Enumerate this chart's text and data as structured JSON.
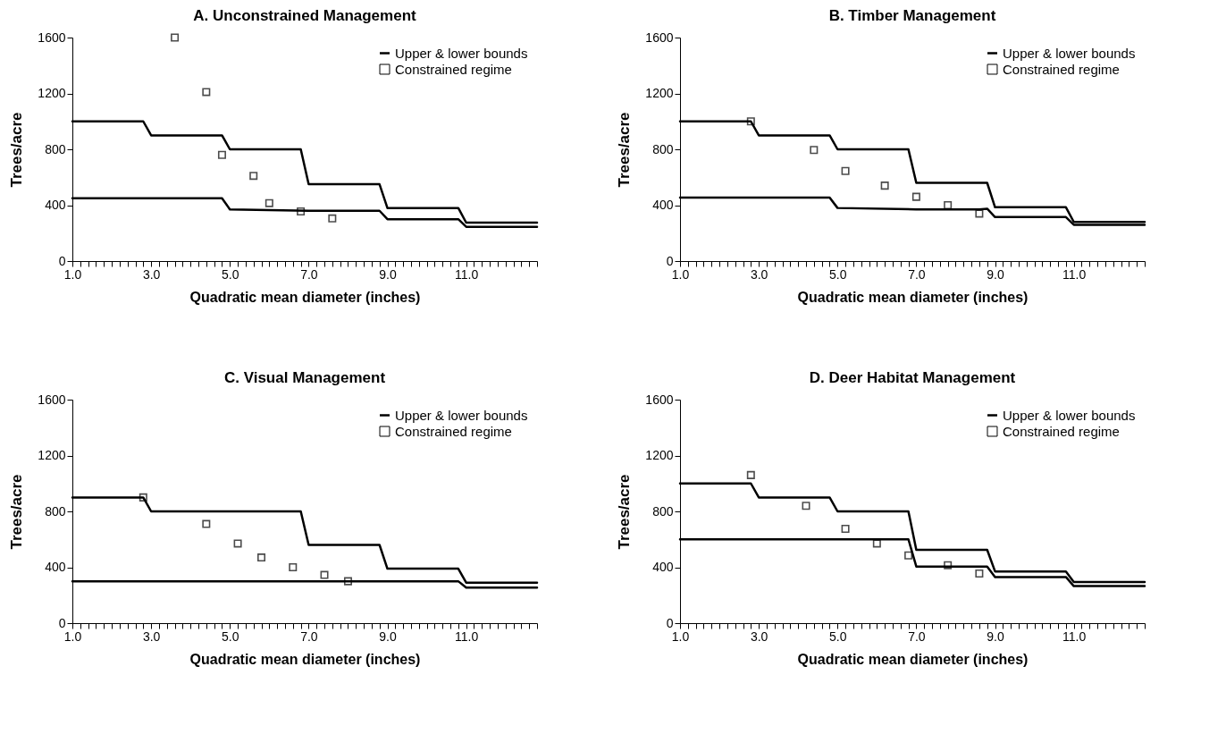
{
  "chart_data": [
    {
      "type": "line",
      "title": "A. Unconstrained Management",
      "xlabel": "Quadratic mean diameter (inches)",
      "ylabel": "Trees/acre",
      "xlim": [
        1,
        12.8
      ],
      "ylim": [
        0,
        1600
      ],
      "yticks": [
        0,
        400,
        800,
        1200,
        1600
      ],
      "xticks": [
        {
          "value": 1,
          "label": "1.0"
        },
        {
          "value": 1.2,
          "label": null
        },
        {
          "value": 1.4,
          "label": null
        },
        {
          "value": 1.6,
          "label": null
        },
        {
          "value": 1.8,
          "label": null
        },
        {
          "value": 2,
          "label": null
        },
        {
          "value": 2.2,
          "label": null
        },
        {
          "value": 2.4,
          "label": null
        },
        {
          "value": 2.6,
          "label": null
        },
        {
          "value": 2.8,
          "label": null
        },
        {
          "value": 3,
          "label": "3.0"
        },
        {
          "value": 3.2,
          "label": null
        },
        {
          "value": 3.4,
          "label": null
        },
        {
          "value": 3.6,
          "label": null
        },
        {
          "value": 3.8,
          "label": null
        },
        {
          "value": 4,
          "label": null
        },
        {
          "value": 4.2,
          "label": null
        },
        {
          "value": 4.4,
          "label": null
        },
        {
          "value": 4.6,
          "label": null
        },
        {
          "value": 4.8,
          "label": null
        },
        {
          "value": 5,
          "label": "5.0"
        },
        {
          "value": 5.2,
          "label": null
        },
        {
          "value": 5.4,
          "label": null
        },
        {
          "value": 5.6,
          "label": null
        },
        {
          "value": 5.8,
          "label": null
        },
        {
          "value": 6,
          "label": null
        },
        {
          "value": 6.2,
          "label": null
        },
        {
          "value": 6.4,
          "label": null
        },
        {
          "value": 6.6,
          "label": null
        },
        {
          "value": 6.8,
          "label": null
        },
        {
          "value": 7,
          "label": "7.0"
        },
        {
          "value": 7.2,
          "label": null
        },
        {
          "value": 7.4,
          "label": null
        },
        {
          "value": 7.6,
          "label": null
        },
        {
          "value": 7.8,
          "label": null
        },
        {
          "value": 8,
          "label": null
        },
        {
          "value": 8.2,
          "label": null
        },
        {
          "value": 8.4,
          "label": null
        },
        {
          "value": 8.6,
          "label": null
        },
        {
          "value": 8.8,
          "label": null
        },
        {
          "value": 9,
          "label": "9.0"
        },
        {
          "value": 9.2,
          "label": null
        },
        {
          "value": 9.4,
          "label": null
        },
        {
          "value": 9.6,
          "label": null
        },
        {
          "value": 9.8,
          "label": null
        },
        {
          "value": 10,
          "label": null
        },
        {
          "value": 10.2,
          "label": null
        },
        {
          "value": 10.4,
          "label": null
        },
        {
          "value": 10.6,
          "label": null
        },
        {
          "value": 10.8,
          "label": null
        },
        {
          "value": 11,
          "label": "11.0"
        },
        {
          "value": 11.2,
          "label": null
        },
        {
          "value": 11.4,
          "label": null
        },
        {
          "value": 11.6,
          "label": null
        },
        {
          "value": 11.8,
          "label": null
        },
        {
          "value": 12,
          "label": null
        },
        {
          "value": 12.2,
          "label": null
        },
        {
          "value": 12.4,
          "label": null
        },
        {
          "value": 12.6,
          "label": null
        },
        {
          "value": 12.8,
          "label": null
        }
      ],
      "legend": "top right",
      "grid": false,
      "line_style": "solid",
      "series": [
        {
          "name": "Upper & lower bounds",
          "type": "line",
          "color": "#000000",
          "x": [
            1,
            2.8,
            3,
            4.8,
            5,
            6.8,
            7,
            8.8,
            9,
            10.8,
            11,
            12.8
          ],
          "values": [
            1000,
            1000,
            900,
            900,
            800,
            800,
            550,
            550,
            380,
            380,
            275,
            275
          ]
        },
        {
          "type": "line",
          "color": "#000000",
          "x": [
            1,
            4.8,
            5,
            7,
            8.8,
            9,
            10.8,
            11,
            12.8
          ],
          "values": [
            450,
            450,
            370,
            360,
            360,
            300,
            300,
            245,
            245
          ]
        },
        {
          "name": "Constrained regime",
          "type": "scatter",
          "marker": "square",
          "color": "#000000",
          "x": [
            3.6,
            4.4,
            4.8,
            5.6,
            6,
            6.8,
            7.6
          ],
          "values": [
            1600,
            1210,
            760,
            610,
            415,
            355,
            305
          ]
        }
      ]
    },
    {
      "type": "line",
      "title": "B. Timber Management",
      "xlabel": "Quadratic mean diameter (inches)",
      "ylabel": "Trees/acre",
      "xlim": [
        1,
        12.8
      ],
      "ylim": [
        0,
        1600
      ],
      "yticks": [
        0,
        400,
        800,
        1200,
        1600
      ],
      "xticks": [
        {
          "value": 1,
          "label": "1.0"
        },
        {
          "value": 1.2,
          "label": null
        },
        {
          "value": 1.4,
          "label": null
        },
        {
          "value": 1.6,
          "label": null
        },
        {
          "value": 1.8,
          "label": null
        },
        {
          "value": 2,
          "label": null
        },
        {
          "value": 2.2,
          "label": null
        },
        {
          "value": 2.4,
          "label": null
        },
        {
          "value": 2.6,
          "label": null
        },
        {
          "value": 2.8,
          "label": null
        },
        {
          "value": 3,
          "label": "3.0"
        },
        {
          "value": 3.2,
          "label": null
        },
        {
          "value": 3.4,
          "label": null
        },
        {
          "value": 3.6,
          "label": null
        },
        {
          "value": 3.8,
          "label": null
        },
        {
          "value": 4,
          "label": null
        },
        {
          "value": 4.2,
          "label": null
        },
        {
          "value": 4.4,
          "label": null
        },
        {
          "value": 4.6,
          "label": null
        },
        {
          "value": 4.8,
          "label": null
        },
        {
          "value": 5,
          "label": "5.0"
        },
        {
          "value": 5.2,
          "label": null
        },
        {
          "value": 5.4,
          "label": null
        },
        {
          "value": 5.6,
          "label": null
        },
        {
          "value": 5.8,
          "label": null
        },
        {
          "value": 6,
          "label": null
        },
        {
          "value": 6.2,
          "label": null
        },
        {
          "value": 6.4,
          "label": null
        },
        {
          "value": 6.6,
          "label": null
        },
        {
          "value": 6.8,
          "label": null
        },
        {
          "value": 7,
          "label": "7.0"
        },
        {
          "value": 7.2,
          "label": null
        },
        {
          "value": 7.4,
          "label": null
        },
        {
          "value": 7.6,
          "label": null
        },
        {
          "value": 7.8,
          "label": null
        },
        {
          "value": 8,
          "label": null
        },
        {
          "value": 8.2,
          "label": null
        },
        {
          "value": 8.4,
          "label": null
        },
        {
          "value": 8.6,
          "label": null
        },
        {
          "value": 8.8,
          "label": null
        },
        {
          "value": 9,
          "label": "9.0"
        },
        {
          "value": 9.2,
          "label": null
        },
        {
          "value": 9.4,
          "label": null
        },
        {
          "value": 9.6,
          "label": null
        },
        {
          "value": 9.8,
          "label": null
        },
        {
          "value": 10,
          "label": null
        },
        {
          "value": 10.2,
          "label": null
        },
        {
          "value": 10.4,
          "label": null
        },
        {
          "value": 10.6,
          "label": null
        },
        {
          "value": 10.8,
          "label": null
        },
        {
          "value": 11,
          "label": "11.0"
        },
        {
          "value": 11.2,
          "label": null
        },
        {
          "value": 11.4,
          "label": null
        },
        {
          "value": 11.6,
          "label": null
        },
        {
          "value": 11.8,
          "label": null
        },
        {
          "value": 12,
          "label": null
        },
        {
          "value": 12.2,
          "label": null
        },
        {
          "value": 12.4,
          "label": null
        },
        {
          "value": 12.6,
          "label": null
        },
        {
          "value": 12.8,
          "label": null
        }
      ],
      "legend": "top right",
      "grid": false,
      "line_style": "solid",
      "series": [
        {
          "name": "Upper & lower bounds",
          "type": "line",
          "color": "#000000",
          "x": [
            1,
            2.8,
            3,
            4.8,
            5,
            6.8,
            7,
            8.8,
            9,
            10.8,
            11,
            12.8
          ],
          "values": [
            1000,
            1000,
            900,
            900,
            800,
            800,
            560,
            560,
            385,
            385,
            280,
            280
          ]
        },
        {
          "type": "line",
          "color": "#000000",
          "x": [
            1,
            4.8,
            5,
            7,
            8.6,
            8.8,
            9,
            10.8,
            11,
            12.8
          ],
          "values": [
            455,
            455,
            380,
            370,
            370,
            375,
            315,
            315,
            260,
            260
          ]
        },
        {
          "name": "Constrained regime",
          "type": "scatter",
          "marker": "square",
          "color": "#000000",
          "x": [
            2.8,
            4.4,
            5.2,
            6.2,
            7,
            7.8,
            8.6
          ],
          "values": [
            1000,
            795,
            645,
            540,
            460,
            400,
            340
          ]
        }
      ]
    },
    {
      "type": "line",
      "title": "C. Visual Management",
      "xlabel": "Quadratic mean diameter (inches)",
      "ylabel": "Trees/acre",
      "xlim": [
        1,
        12.8
      ],
      "ylim": [
        0,
        1600
      ],
      "yticks": [
        0,
        400,
        800,
        1200,
        1600
      ],
      "xticks": [
        {
          "value": 1,
          "label": "1.0"
        },
        {
          "value": 1.2,
          "label": null
        },
        {
          "value": 1.4,
          "label": null
        },
        {
          "value": 1.6,
          "label": null
        },
        {
          "value": 1.8,
          "label": null
        },
        {
          "value": 2,
          "label": null
        },
        {
          "value": 2.2,
          "label": null
        },
        {
          "value": 2.4,
          "label": null
        },
        {
          "value": 2.6,
          "label": null
        },
        {
          "value": 2.8,
          "label": null
        },
        {
          "value": 3,
          "label": "3.0"
        },
        {
          "value": 3.2,
          "label": null
        },
        {
          "value": 3.4,
          "label": null
        },
        {
          "value": 3.6,
          "label": null
        },
        {
          "value": 3.8,
          "label": null
        },
        {
          "value": 4,
          "label": null
        },
        {
          "value": 4.2,
          "label": null
        },
        {
          "value": 4.4,
          "label": null
        },
        {
          "value": 4.6,
          "label": null
        },
        {
          "value": 4.8,
          "label": null
        },
        {
          "value": 5,
          "label": "5.0"
        },
        {
          "value": 5.2,
          "label": null
        },
        {
          "value": 5.4,
          "label": null
        },
        {
          "value": 5.6,
          "label": null
        },
        {
          "value": 5.8,
          "label": null
        },
        {
          "value": 6,
          "label": null
        },
        {
          "value": 6.2,
          "label": null
        },
        {
          "value": 6.4,
          "label": null
        },
        {
          "value": 6.6,
          "label": null
        },
        {
          "value": 6.8,
          "label": null
        },
        {
          "value": 7,
          "label": "7.0"
        },
        {
          "value": 7.2,
          "label": null
        },
        {
          "value": 7.4,
          "label": null
        },
        {
          "value": 7.6,
          "label": null
        },
        {
          "value": 7.8,
          "label": null
        },
        {
          "value": 8,
          "label": null
        },
        {
          "value": 8.2,
          "label": null
        },
        {
          "value": 8.4,
          "label": null
        },
        {
          "value": 8.6,
          "label": null
        },
        {
          "value": 8.8,
          "label": null
        },
        {
          "value": 9,
          "label": "9.0"
        },
        {
          "value": 9.2,
          "label": null
        },
        {
          "value": 9.4,
          "label": null
        },
        {
          "value": 9.6,
          "label": null
        },
        {
          "value": 9.8,
          "label": null
        },
        {
          "value": 10,
          "label": null
        },
        {
          "value": 10.2,
          "label": null
        },
        {
          "value": 10.4,
          "label": null
        },
        {
          "value": 10.6,
          "label": null
        },
        {
          "value": 10.8,
          "label": null
        },
        {
          "value": 11,
          "label": "11.0"
        },
        {
          "value": 11.2,
          "label": null
        },
        {
          "value": 11.4,
          "label": null
        },
        {
          "value": 11.6,
          "label": null
        },
        {
          "value": 11.8,
          "label": null
        },
        {
          "value": 12,
          "label": null
        },
        {
          "value": 12.2,
          "label": null
        },
        {
          "value": 12.4,
          "label": null
        },
        {
          "value": 12.6,
          "label": null
        },
        {
          "value": 12.8,
          "label": null
        }
      ],
      "legend": "top right",
      "grid": false,
      "line_style": "solid",
      "series": [
        {
          "name": "Upper & lower bounds",
          "type": "line",
          "color": "#000000",
          "x": [
            1,
            2.8,
            3,
            6.8,
            7,
            8.8,
            9,
            10.8,
            11,
            12.8
          ],
          "values": [
            900,
            900,
            800,
            800,
            560,
            560,
            390,
            390,
            290,
            290
          ]
        },
        {
          "type": "line",
          "color": "#000000",
          "x": [
            1,
            10.8,
            11,
            12.8
          ],
          "values": [
            300,
            300,
            255,
            255
          ]
        },
        {
          "name": "Constrained regime",
          "type": "scatter",
          "marker": "square",
          "color": "#000000",
          "x": [
            2.8,
            4.4,
            5.2,
            5.8,
            6.6,
            7.4,
            8
          ],
          "values": [
            900,
            710,
            570,
            470,
            400,
            345,
            300
          ]
        }
      ]
    },
    {
      "type": "line",
      "title": "D. Deer Habitat Management",
      "xlabel": "Quadratic mean diameter (inches)",
      "ylabel": "Trees/acre",
      "xlim": [
        1,
        12.8
      ],
      "ylim": [
        0,
        1600
      ],
      "yticks": [
        0,
        400,
        800,
        1200,
        1600
      ],
      "xticks": [
        {
          "value": 1,
          "label": "1.0"
        },
        {
          "value": 1.2,
          "label": null
        },
        {
          "value": 1.4,
          "label": null
        },
        {
          "value": 1.6,
          "label": null
        },
        {
          "value": 1.8,
          "label": null
        },
        {
          "value": 2,
          "label": null
        },
        {
          "value": 2.2,
          "label": null
        },
        {
          "value": 2.4,
          "label": null
        },
        {
          "value": 2.6,
          "label": null
        },
        {
          "value": 2.8,
          "label": null
        },
        {
          "value": 3,
          "label": "3.0"
        },
        {
          "value": 3.2,
          "label": null
        },
        {
          "value": 3.4,
          "label": null
        },
        {
          "value": 3.6,
          "label": null
        },
        {
          "value": 3.8,
          "label": null
        },
        {
          "value": 4,
          "label": null
        },
        {
          "value": 4.2,
          "label": null
        },
        {
          "value": 4.4,
          "label": null
        },
        {
          "value": 4.6,
          "label": null
        },
        {
          "value": 4.8,
          "label": null
        },
        {
          "value": 5,
          "label": "5.0"
        },
        {
          "value": 5.2,
          "label": null
        },
        {
          "value": 5.4,
          "label": null
        },
        {
          "value": 5.6,
          "label": null
        },
        {
          "value": 5.8,
          "label": null
        },
        {
          "value": 6,
          "label": null
        },
        {
          "value": 6.2,
          "label": null
        },
        {
          "value": 6.4,
          "label": null
        },
        {
          "value": 6.6,
          "label": null
        },
        {
          "value": 6.8,
          "label": null
        },
        {
          "value": 7,
          "label": "7.0"
        },
        {
          "value": 7.2,
          "label": null
        },
        {
          "value": 7.4,
          "label": null
        },
        {
          "value": 7.6,
          "label": null
        },
        {
          "value": 7.8,
          "label": null
        },
        {
          "value": 8,
          "label": null
        },
        {
          "value": 8.2,
          "label": null
        },
        {
          "value": 8.4,
          "label": null
        },
        {
          "value": 8.6,
          "label": null
        },
        {
          "value": 8.8,
          "label": null
        },
        {
          "value": 9,
          "label": "9.0"
        },
        {
          "value": 9.2,
          "label": null
        },
        {
          "value": 9.4,
          "label": null
        },
        {
          "value": 9.6,
          "label": null
        },
        {
          "value": 9.8,
          "label": null
        },
        {
          "value": 10,
          "label": null
        },
        {
          "value": 10.2,
          "label": null
        },
        {
          "value": 10.4,
          "label": null
        },
        {
          "value": 10.6,
          "label": null
        },
        {
          "value": 10.8,
          "label": null
        },
        {
          "value": 11,
          "label": "11.0"
        },
        {
          "value": 11.2,
          "label": null
        },
        {
          "value": 11.4,
          "label": null
        },
        {
          "value": 11.6,
          "label": null
        },
        {
          "value": 11.8,
          "label": null
        },
        {
          "value": 12,
          "label": null
        },
        {
          "value": 12.2,
          "label": null
        },
        {
          "value": 12.4,
          "label": null
        },
        {
          "value": 12.6,
          "label": null
        },
        {
          "value": 12.8,
          "label": null
        }
      ],
      "legend": "top right",
      "grid": false,
      "line_style": "solid",
      "series": [
        {
          "name": "Upper & lower bounds",
          "type": "line",
          "color": "#000000",
          "x": [
            1,
            2.8,
            3,
            4.8,
            5,
            6.8,
            7,
            8.8,
            9,
            10.8,
            11,
            12.8
          ],
          "values": [
            1000,
            1000,
            900,
            900,
            800,
            800,
            525,
            525,
            370,
            370,
            295,
            295
          ]
        },
        {
          "type": "line",
          "color": "#000000",
          "x": [
            1,
            6.8,
            7,
            8.8,
            9,
            10.8,
            11,
            12.8
          ],
          "values": [
            600,
            600,
            405,
            405,
            330,
            330,
            265,
            265
          ]
        },
        {
          "name": "Constrained regime",
          "type": "scatter",
          "marker": "square",
          "color": "#000000",
          "x": [
            2.8,
            4.2,
            5.2,
            6,
            6.8,
            7.8,
            8.6
          ],
          "values": [
            1060,
            840,
            675,
            570,
            485,
            415,
            355
          ]
        }
      ]
    }
  ]
}
